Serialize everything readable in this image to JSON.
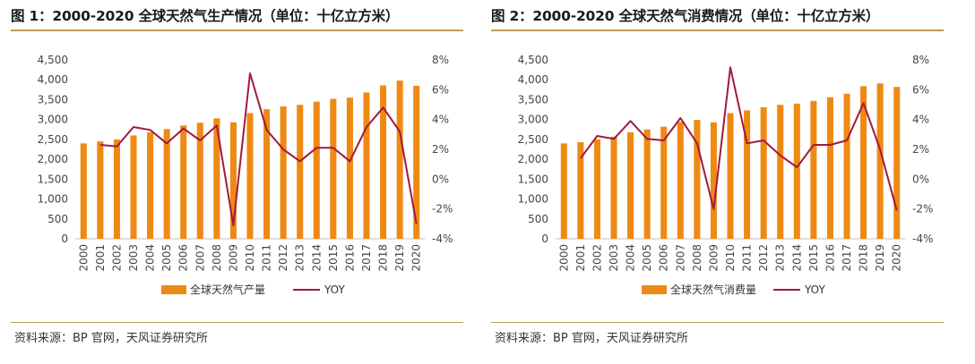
{
  "charts": [
    {
      "title": "图 1：2000-2020 全球天然气生产情况（单位：十亿立方米）",
      "source": "资料来源：BP 官网，天风证券研究所",
      "chart_data": {
        "type": "bar",
        "categories": [
          "2000",
          "2001",
          "2002",
          "2003",
          "2004",
          "2005",
          "2006",
          "2007",
          "2008",
          "2009",
          "2010",
          "2011",
          "2012",
          "2013",
          "2014",
          "2015",
          "2016",
          "2017",
          "2018",
          "2019",
          "2020"
        ],
        "series": [
          {
            "name": "全球天然气产量",
            "type": "bar",
            "axis": "left",
            "color": "#ee8a14",
            "values": [
              2400,
              2450,
              2500,
              2600,
              2680,
              2760,
              2850,
              2920,
              3030,
              2930,
              3160,
              3260,
              3330,
              3370,
              3450,
              3520,
              3550,
              3680,
              3860,
              3980,
              3850
            ]
          },
          {
            "name": "YOY",
            "type": "line",
            "axis": "right",
            "color": "#a01a3c",
            "values": [
              null,
              2.3,
              2.2,
              3.5,
              3.3,
              2.4,
              3.4,
              2.6,
              3.6,
              -3.1,
              7.1,
              3.3,
              2.0,
              1.2,
              2.1,
              2.1,
              1.2,
              3.5,
              4.8,
              3.2,
              -3.0
            ]
          }
        ],
        "ylim": [
          0,
          4500
        ],
        "yticks": [
          "0",
          "500",
          "1,000",
          "1,500",
          "2,000",
          "2,500",
          "3,000",
          "3,500",
          "4,000",
          "4,500"
        ],
        "y2lim": [
          -4,
          8
        ],
        "y2ticks": [
          "-4%",
          "-2%",
          "0%",
          "2%",
          "4%",
          "6%",
          "8%"
        ],
        "legend": "bottom",
        "grid": false
      }
    },
    {
      "title": "图 2：2000-2020 全球天然气消费情况（单位：十亿立方米）",
      "source": "资料来源：BP 官网，天风证券研究所",
      "chart_data": {
        "type": "bar",
        "categories": [
          "2000",
          "2001",
          "2002",
          "2003",
          "2004",
          "2005",
          "2006",
          "2007",
          "2008",
          "2009",
          "2010",
          "2011",
          "2012",
          "2013",
          "2014",
          "2015",
          "2016",
          "2017",
          "2018",
          "2019",
          "2020"
        ],
        "series": [
          {
            "name": "全球天然气消费量",
            "type": "bar",
            "axis": "left",
            "color": "#ee8a14",
            "values": [
              2400,
              2430,
              2500,
              2570,
              2680,
              2750,
              2820,
              2940,
              2990,
              2930,
              3160,
              3230,
              3310,
              3370,
              3400,
              3470,
              3560,
              3650,
              3840,
              3910,
              3820
            ]
          },
          {
            "name": "YOY",
            "type": "line",
            "axis": "right",
            "color": "#a01a3c",
            "values": [
              null,
              1.4,
              2.9,
              2.7,
              3.9,
              2.7,
              2.6,
              4.1,
              2.4,
              -2.0,
              7.5,
              2.4,
              2.6,
              1.6,
              0.8,
              2.3,
              2.3,
              2.6,
              5.1,
              2.0,
              -2.1
            ]
          }
        ],
        "ylim": [
          0,
          4500
        ],
        "yticks": [
          "0",
          "500",
          "1,000",
          "1,500",
          "2,000",
          "2,500",
          "3,000",
          "3,500",
          "4,000",
          "4,500"
        ],
        "y2lim": [
          -4,
          8
        ],
        "y2ticks": [
          "-4%",
          "-2%",
          "0%",
          "2%",
          "4%",
          "6%",
          "8%"
        ],
        "legend": "bottom",
        "grid": false
      }
    }
  ]
}
